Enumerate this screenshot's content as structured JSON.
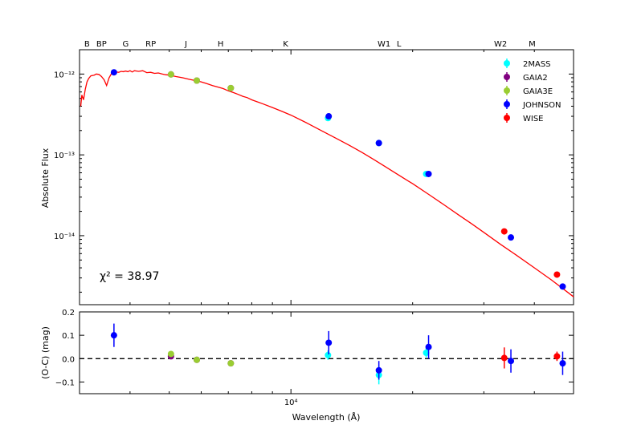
{
  "chart_data": [
    {
      "type": "scatter",
      "panel": "sed",
      "xlabel": "",
      "ylabel": "Absolute Flux",
      "x_scale": "log",
      "y_scale": "log",
      "xlim": [
        3000,
        50000
      ],
      "ylim": [
        1.4e-15,
        2e-12
      ],
      "y_ticks": [
        {
          "value": 1e-12,
          "label": "10⁻¹²"
        },
        {
          "value": 1e-13,
          "label": "10⁻¹³"
        },
        {
          "value": 1e-14,
          "label": "10⁻¹⁴"
        }
      ],
      "top_labels": [
        {
          "label": "B",
          "x": 3130
        },
        {
          "label": "BP",
          "x": 3400
        },
        {
          "label": "G",
          "x": 3900
        },
        {
          "label": "RP",
          "x": 4500
        },
        {
          "label": "J",
          "x": 5500
        },
        {
          "label": "H",
          "x": 6700
        },
        {
          "label": "K",
          "x": 9700
        },
        {
          "label": "W1",
          "x": 17000
        },
        {
          "label": "L",
          "x": 18500
        },
        {
          "label": "W2",
          "x": 33000
        },
        {
          "label": "M",
          "x": 39500
        }
      ],
      "annotation": "χ² = 38.97",
      "legend_position": "top-right",
      "model_curve": {
        "color": "#ff0000",
        "x": [
          3020,
          3040,
          3070,
          3100,
          3130,
          3160,
          3200,
          3260,
          3300,
          3350,
          3400,
          3450,
          3500,
          3550,
          3600,
          3650,
          3700,
          3750,
          3800,
          3850,
          3900,
          3950,
          4000,
          4050,
          4100,
          4200,
          4300,
          4400,
          4500,
          4600,
          4700,
          4800,
          4900,
          5000,
          5100,
          5200,
          5400,
          5600,
          5800,
          6000,
          6200,
          6400,
          6600,
          6800,
          7000,
          7200,
          7400,
          7600,
          7800,
          8000,
          8500,
          9000,
          9500,
          10000,
          11000,
          12000,
          13000,
          14000,
          15000,
          16000,
          17000,
          18000,
          19000,
          20000,
          22000,
          24000,
          26000,
          28000,
          30000,
          33000,
          36000,
          40000,
          44000,
          48000,
          50000
        ],
        "y": [
          4e-13,
          5.5e-13,
          4.8e-13,
          6.5e-13,
          8e-13,
          8.8e-13,
          9.5e-13,
          9.7e-13,
          1e-12,
          9.9e-13,
          9.3e-13,
          8.5e-13,
          7.2e-13,
          9e-13,
          1.02e-12,
          1.04e-12,
          1.06e-12,
          1.05e-12,
          1.08e-12,
          1.07e-12,
          1.09e-12,
          1.07e-12,
          1.1e-12,
          1.06e-12,
          1.1e-12,
          1.08e-12,
          1.1e-12,
          1.04e-12,
          1.05e-12,
          1.02e-12,
          1.03e-12,
          1e-12,
          9.8e-13,
          9.7e-13,
          9.5e-13,
          9.3e-13,
          9e-13,
          8.6e-13,
          8.3e-13,
          8e-13,
          7.6e-13,
          7.2e-13,
          6.9e-13,
          6.6e-13,
          6.2e-13,
          5.9e-13,
          5.6e-13,
          5.3e-13,
          5.1e-13,
          4.8e-13,
          4.3e-13,
          3.85e-13,
          3.45e-13,
          3.1e-13,
          2.45e-13,
          1.95e-13,
          1.58e-13,
          1.3e-13,
          1.07e-13,
          8.8e-14,
          7.3e-14,
          6.1e-14,
          5.15e-14,
          4.4e-14,
          3.2e-14,
          2.38e-14,
          1.8e-14,
          1.4e-14,
          1.1e-14,
          7.8e-15,
          5.8e-15,
          4e-15,
          2.85e-15,
          2.05e-15,
          1.75e-15
        ]
      },
      "series": [
        {
          "name": "2MASS",
          "color": "#00ffff",
          "points": [
            {
              "x": 12350,
              "y": 2.85e-13
            },
            {
              "x": 16500,
              "y": 1.4e-13
            },
            {
              "x": 21600,
              "y": 5.8e-14
            }
          ]
        },
        {
          "name": "GAIA2",
          "color": "#800080",
          "points": [
            {
              "x": 5050,
              "y": 9.9e-13
            },
            {
              "x": 5850,
              "y": 8.3e-13
            },
            {
              "x": 7100,
              "y": 6.7e-13
            }
          ]
        },
        {
          "name": "GAIA3E",
          "color": "#9acd32",
          "points": [
            {
              "x": 5050,
              "y": 9.9e-13
            },
            {
              "x": 5850,
              "y": 8.3e-13
            },
            {
              "x": 7100,
              "y": 6.7e-13
            }
          ]
        },
        {
          "name": "JOHNSON",
          "color": "#0000ff",
          "points": [
            {
              "x": 3650,
              "y": 1.05e-12
            },
            {
              "x": 12400,
              "y": 3e-13
            },
            {
              "x": 16500,
              "y": 1.4e-13
            },
            {
              "x": 21900,
              "y": 5.8e-14
            },
            {
              "x": 35000,
              "y": 9.5e-15
            },
            {
              "x": 47000,
              "y": 2.35e-15
            }
          ]
        },
        {
          "name": "WISE",
          "color": "#ff0000",
          "points": [
            {
              "x": 33700,
              "y": 1.13e-14
            },
            {
              "x": 45500,
              "y": 3.3e-15
            }
          ]
        }
      ]
    },
    {
      "type": "scatter",
      "panel": "residuals",
      "xlabel": "Wavelength (Å)",
      "ylabel": "(O-C) (mag)",
      "x_scale": "log",
      "xlim": [
        3000,
        50000
      ],
      "ylim": [
        -0.15,
        0.2
      ],
      "y_ticks": [
        {
          "value": 0.2,
          "label": "0.2"
        },
        {
          "value": 0.1,
          "label": "0.1"
        },
        {
          "value": 0.0,
          "label": "0.0"
        },
        {
          "value": -0.1,
          "label": "−0.1"
        }
      ],
      "x_ticks": [
        {
          "value": 10000,
          "label": "10⁴"
        }
      ],
      "zero_line": true,
      "series": [
        {
          "name": "2MASS",
          "color": "#00ffff",
          "points": [
            {
              "x": 12350,
              "y": 0.015,
              "err": 0.02
            },
            {
              "x": 16500,
              "y": -0.07,
              "err": 0.04
            },
            {
              "x": 21600,
              "y": 0.025,
              "err": 0.02
            }
          ]
        },
        {
          "name": "GAIA2",
          "color": "#800080",
          "points": [
            {
              "x": 5050,
              "y": 0.01,
              "err": 0.005
            },
            {
              "x": 5850,
              "y": -0.005,
              "err": 0.005
            },
            {
              "x": 7100,
              "y": -0.02,
              "err": 0.005
            }
          ]
        },
        {
          "name": "GAIA3E",
          "color": "#9acd32",
          "points": [
            {
              "x": 5050,
              "y": 0.02,
              "err": 0.005
            },
            {
              "x": 5850,
              "y": -0.005,
              "err": 0.005
            },
            {
              "x": 7100,
              "y": -0.02,
              "err": 0.005
            }
          ]
        },
        {
          "name": "JOHNSON",
          "color": "#0000ff",
          "points": [
            {
              "x": 3650,
              "y": 0.1,
              "err": 0.05
            },
            {
              "x": 12400,
              "y": 0.068,
              "err": 0.05
            },
            {
              "x": 16500,
              "y": -0.05,
              "err": 0.04
            },
            {
              "x": 21900,
              "y": 0.05,
              "err": 0.05
            },
            {
              "x": 35000,
              "y": -0.01,
              "err": 0.05
            },
            {
              "x": 47000,
              "y": -0.02,
              "err": 0.05
            }
          ]
        },
        {
          "name": "WISE",
          "color": "#ff0000",
          "points": [
            {
              "x": 33700,
              "y": 0.003,
              "err": 0.045
            },
            {
              "x": 45500,
              "y": 0.01,
              "err": 0.02
            }
          ]
        }
      ]
    }
  ]
}
